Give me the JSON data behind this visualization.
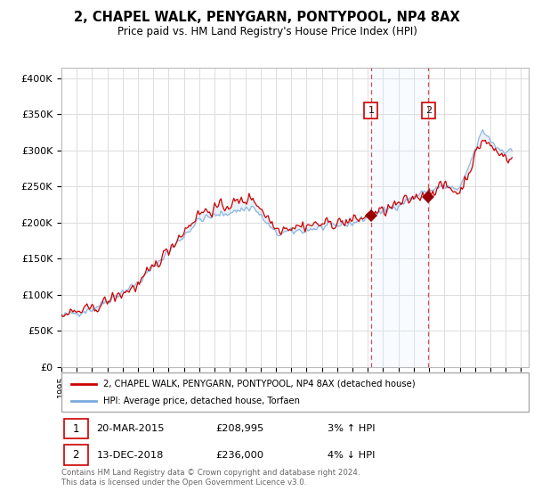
{
  "title": "2, CHAPEL WALK, PENYGARN, PONTYPOOL, NP4 8AX",
  "subtitle": "Price paid vs. HM Land Registry's House Price Index (HPI)",
  "ylabel_ticks": [
    "£0",
    "£50K",
    "£100K",
    "£150K",
    "£200K",
    "£250K",
    "£300K",
    "£350K",
    "£400K"
  ],
  "ytick_values": [
    0,
    50000,
    100000,
    150000,
    200000,
    250000,
    300000,
    350000,
    400000
  ],
  "ylim": [
    0,
    415000
  ],
  "legend_line1": "2, CHAPEL WALK, PENYGARN, PONTYPOOL, NP4 8AX (detached house)",
  "legend_line2": "HPI: Average price, detached house, Torfaen",
  "annotation1_date": "20-MAR-2015",
  "annotation1_price": "£208,995",
  "annotation1_hpi": "3% ↑ HPI",
  "annotation2_date": "13-DEC-2018",
  "annotation2_price": "£236,000",
  "annotation2_hpi": "4% ↓ HPI",
  "footer": "Contains HM Land Registry data © Crown copyright and database right 2024.\nThis data is licensed under the Open Government Licence v3.0.",
  "property_color": "#cc0000",
  "hpi_color": "#7aaadd",
  "hpi_fill_color": "#ddeeff",
  "sale1_x": 2015.21,
  "sale1_y": 208995,
  "sale2_x": 2018.95,
  "sale2_y": 236000,
  "vline1_x": 2015.21,
  "vline2_x": 2018.95,
  "xmin": 1995,
  "xmax": 2025.5,
  "background_color": "#ffffff",
  "grid_color": "#dddddd"
}
